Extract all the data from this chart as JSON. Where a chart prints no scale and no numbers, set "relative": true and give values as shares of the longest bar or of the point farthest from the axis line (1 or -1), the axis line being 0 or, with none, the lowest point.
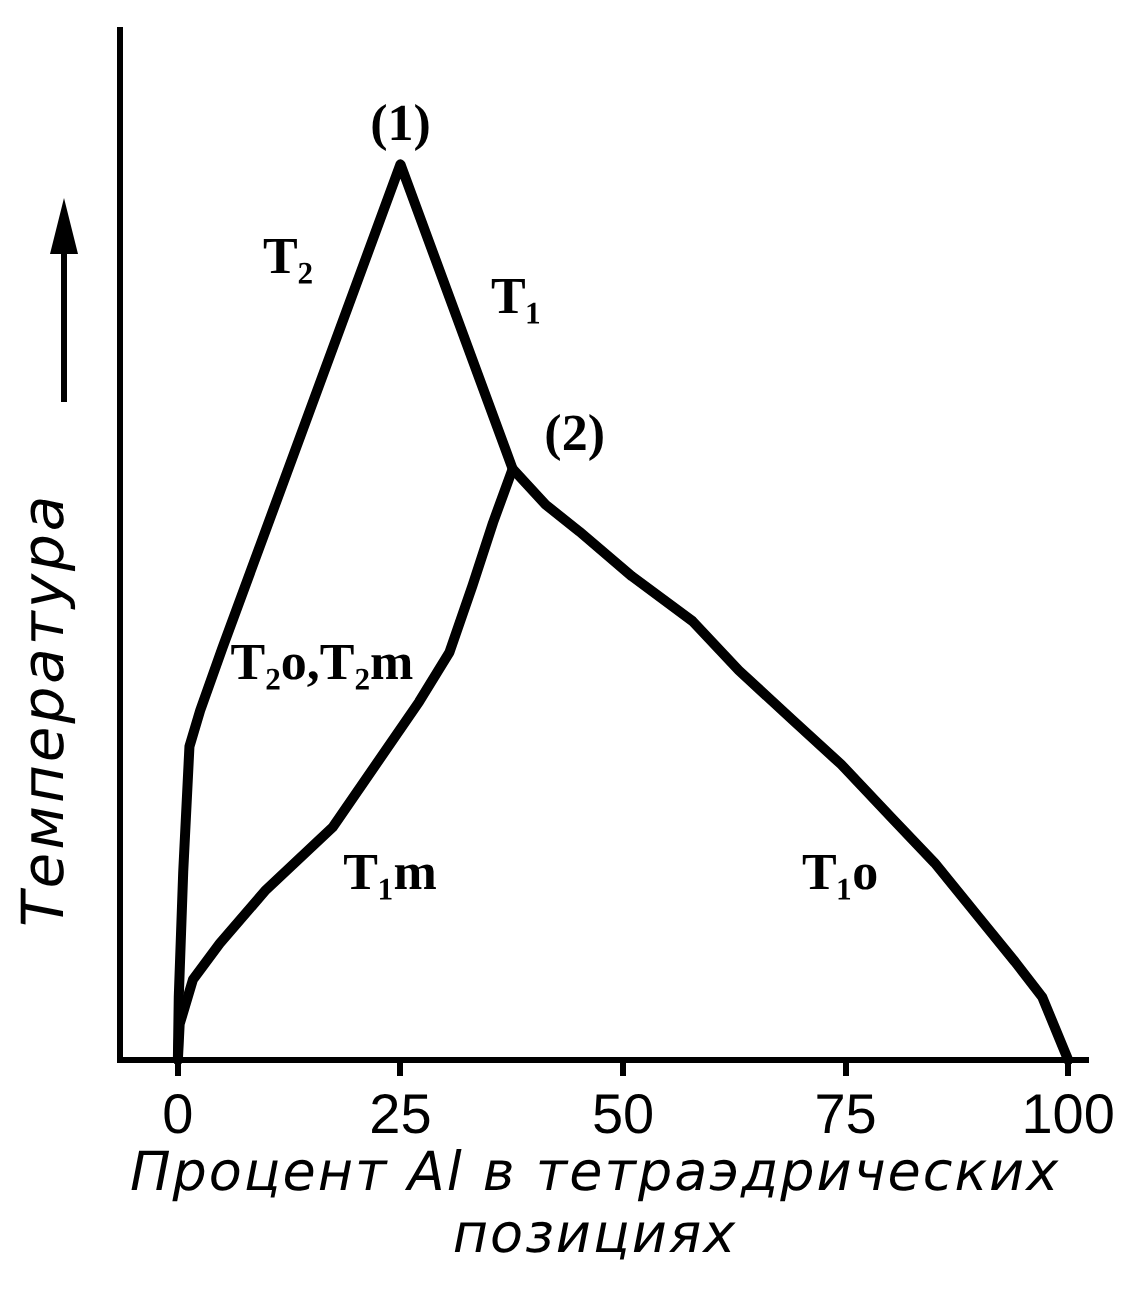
{
  "chart_data": {
    "type": "line",
    "relative": true,
    "xlabel": "Процент Al в тетраэдрических позициях",
    "ylabel": "Температура",
    "xlim": [
      -6.5,
      102
    ],
    "xticks": [
      0,
      25,
      50,
      75,
      100
    ],
    "series": [
      {
        "color": "#000000",
        "x": [
          0,
          0.1,
          0.6,
          1.3,
          2.5,
          5,
          25,
          37.6,
          41.3,
          45.1,
          51,
          57.8,
          63,
          69,
          74.5,
          80.2,
          85,
          89.9,
          94,
          97.1,
          100
        ],
        "values": [
          0,
          0.07,
          0.21,
          0.35,
          0.39,
          0.46,
          1,
          0.66,
          0.62,
          0.59,
          0.54,
          0.49,
          0.435,
          0.38,
          0.33,
          0.27,
          0.22,
          0.16,
          0.11,
          0.07,
          0
        ]
      },
      {
        "color": "#000000",
        "x": [
          0,
          0.2,
          1.7,
          4.7,
          9.9,
          17.4,
          27.1,
          30.5,
          33.1,
          35.4,
          37.6
        ],
        "values": [
          0,
          0.04,
          0.09,
          0.13,
          0.19,
          0.26,
          0.4,
          0.455,
          0.53,
          0.6,
          0.66
        ]
      }
    ],
    "annotations": [
      {
        "text": "(1)",
        "x": 25,
        "y": 1
      },
      {
        "text": "(2)",
        "x": 37.6,
        "y": 0.66
      },
      "T₂",
      "T₁",
      "T₂o,T₂m",
      "T₁m",
      "T₁o"
    ]
  }
}
